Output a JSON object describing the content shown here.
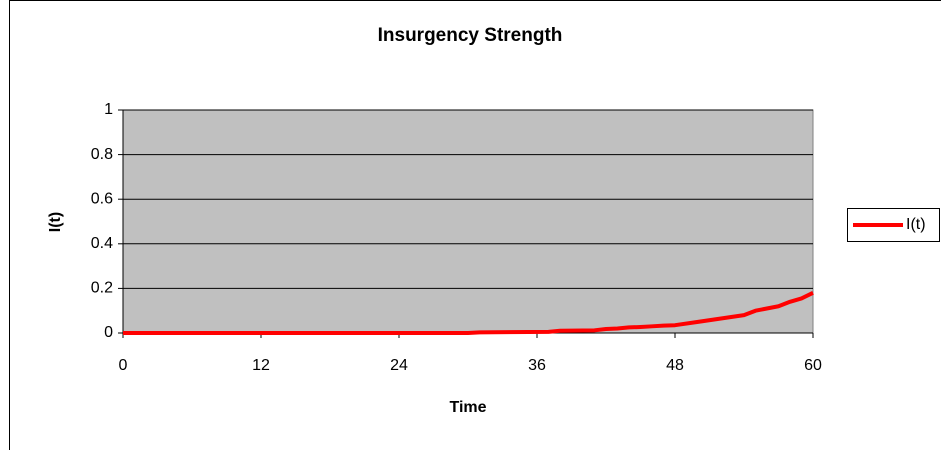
{
  "chart_data": {
    "type": "line",
    "title": "Insurgency Strength",
    "x_label": "Time",
    "y_label": "I(t)",
    "x": [
      0,
      30,
      31,
      37,
      38,
      41,
      42,
      43,
      44,
      45,
      46,
      47,
      48,
      50,
      52,
      54,
      55,
      57,
      58,
      59,
      60
    ],
    "series": [
      {
        "name": "I(t)",
        "color": "#ff0000",
        "values": [
          0,
          0,
          0.003,
          0.005,
          0.01,
          0.012,
          0.018,
          0.02,
          0.025,
          0.027,
          0.03,
          0.033,
          0.035,
          0.05,
          0.065,
          0.08,
          0.1,
          0.12,
          0.14,
          0.155,
          0.18
        ]
      }
    ],
    "xlim": [
      0,
      60
    ],
    "xticks": [
      0,
      12,
      24,
      36,
      48,
      60
    ],
    "ylim": [
      0,
      1
    ],
    "yticks": [
      0,
      0.2,
      0.4,
      0.6,
      0.8,
      1
    ],
    "grid": true,
    "plot_background": "#c0c0c0",
    "legend_position": "right"
  }
}
